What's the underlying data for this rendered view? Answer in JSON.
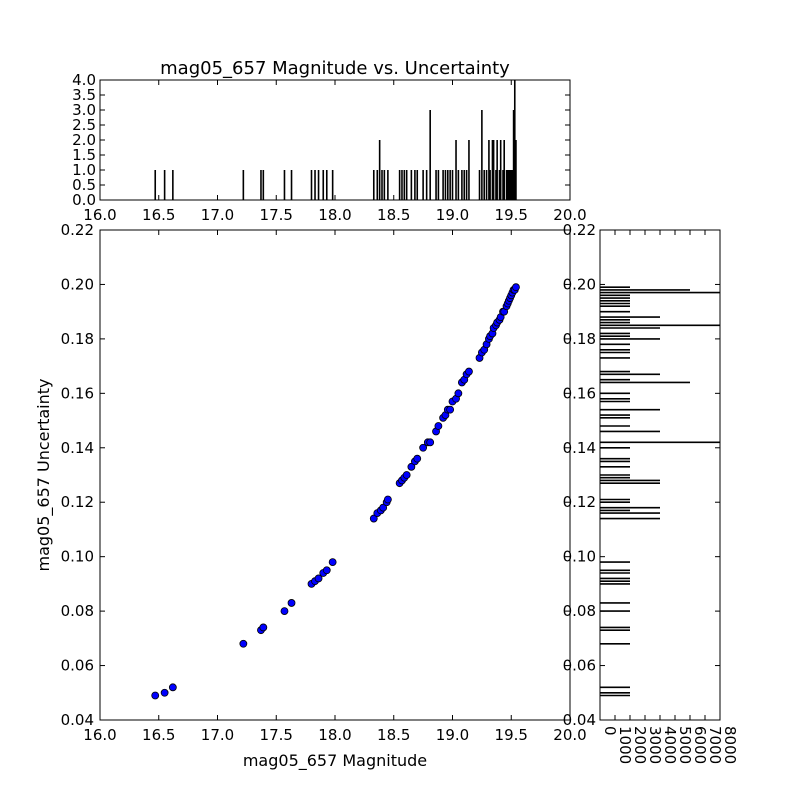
{
  "title": "mag05_657 Magnitude vs. Uncertainty",
  "colors": {
    "points": "#0000ff",
    "bars": "#000000",
    "axes": "#000000"
  },
  "chart_data": [
    {
      "id": "scatter",
      "type": "scatter",
      "xlabel": "mag05_657 Magnitude",
      "ylabel": "mag05_657 Uncertainty",
      "xlim": [
        16.0,
        20.0
      ],
      "ylim": [
        0.04,
        0.22
      ],
      "xticks": [
        "16.0",
        "16.5",
        "17.0",
        "17.5",
        "18.0",
        "18.5",
        "19.0",
        "19.5",
        "20.0"
      ],
      "yticks": [
        "0.04",
        "0.06",
        "0.08",
        "0.10",
        "0.12",
        "0.14",
        "0.16",
        "0.18",
        "0.20",
        "0.22"
      ],
      "x": [
        16.47,
        16.55,
        16.62,
        17.22,
        17.37,
        17.39,
        17.57,
        17.63,
        17.8,
        17.83,
        17.86,
        17.9,
        17.93,
        17.98,
        18.33,
        18.36,
        18.39,
        18.41,
        18.44,
        18.45,
        18.55,
        18.57,
        18.59,
        18.61,
        18.65,
        18.68,
        18.7,
        18.75,
        18.79,
        18.81,
        18.86,
        18.88,
        18.92,
        18.94,
        18.96,
        18.98,
        19.0,
        19.03,
        19.05,
        19.08,
        19.1,
        19.12,
        19.14,
        19.23,
        19.25,
        19.27,
        19.29,
        19.31,
        19.32,
        19.34,
        19.35,
        19.37,
        19.38,
        19.4,
        19.41,
        19.43,
        19.44,
        19.46,
        19.47,
        19.48,
        19.49,
        19.5,
        19.51,
        19.52,
        19.53,
        19.54
      ],
      "y": [
        0.049,
        0.05,
        0.052,
        0.068,
        0.073,
        0.074,
        0.08,
        0.083,
        0.09,
        0.091,
        0.092,
        0.094,
        0.095,
        0.098,
        0.114,
        0.116,
        0.117,
        0.118,
        0.12,
        0.121,
        0.127,
        0.128,
        0.129,
        0.13,
        0.133,
        0.135,
        0.136,
        0.14,
        0.142,
        0.142,
        0.146,
        0.148,
        0.151,
        0.152,
        0.154,
        0.154,
        0.157,
        0.158,
        0.16,
        0.164,
        0.165,
        0.167,
        0.168,
        0.173,
        0.175,
        0.176,
        0.178,
        0.18,
        0.181,
        0.182,
        0.184,
        0.185,
        0.186,
        0.187,
        0.188,
        0.19,
        0.19,
        0.192,
        0.193,
        0.194,
        0.195,
        0.196,
        0.197,
        0.198,
        0.198,
        0.199
      ]
    },
    {
      "id": "hist-x",
      "type": "bar",
      "title": "mag05_657 Magnitude vs. Uncertainty",
      "xlim": [
        16.0,
        20.0
      ],
      "ylim": [
        0.0,
        4.0
      ],
      "xticks": [
        "16.0",
        "16.5",
        "17.0",
        "17.5",
        "18.0",
        "18.5",
        "19.0",
        "19.5",
        "20.0"
      ],
      "yticks": [
        "0.0",
        "0.5",
        "1.0",
        "1.5",
        "2.0",
        "2.5",
        "3.0",
        "3.5",
        "4.0"
      ],
      "x": [
        16.47,
        16.55,
        16.62,
        17.22,
        17.37,
        17.39,
        17.57,
        17.63,
        17.8,
        17.83,
        17.86,
        17.9,
        17.93,
        17.98,
        18.33,
        18.36,
        18.38,
        18.4,
        18.42,
        18.45,
        18.55,
        18.57,
        18.59,
        18.61,
        18.65,
        18.68,
        18.7,
        18.75,
        18.78,
        18.81,
        18.86,
        18.88,
        18.92,
        18.94,
        18.96,
        18.98,
        19.0,
        19.03,
        19.05,
        19.08,
        19.1,
        19.12,
        19.14,
        19.23,
        19.25,
        19.27,
        19.29,
        19.31,
        19.32,
        19.34,
        19.35,
        19.37,
        19.38,
        19.4,
        19.41,
        19.43,
        19.44,
        19.46,
        19.47,
        19.48,
        19.49,
        19.5,
        19.51,
        19.52,
        19.53,
        19.54
      ],
      "values": [
        1,
        1,
        1,
        1,
        1,
        1,
        1,
        1,
        1,
        1,
        1,
        1,
        1,
        1,
        1,
        1,
        2,
        1,
        1,
        1,
        1,
        1,
        1,
        1,
        1,
        1,
        1,
        1,
        1,
        3,
        1,
        1,
        1,
        1,
        1,
        1,
        1,
        2,
        1,
        1,
        1,
        1,
        2,
        1,
        3,
        1,
        1,
        2,
        1,
        2,
        2,
        1,
        2,
        1,
        2,
        1,
        2,
        1,
        1,
        1,
        1,
        1,
        1,
        3,
        4,
        2
      ]
    },
    {
      "id": "hist-y",
      "type": "bar",
      "orientation": "horizontal",
      "xlim": [
        0,
        8000
      ],
      "ylim": [
        0.04,
        0.22
      ],
      "xticks": [
        "0",
        "1000",
        "2000",
        "3000",
        "4000",
        "5000",
        "6000",
        "7000",
        "8000"
      ],
      "yticks": [
        "0.04",
        "0.06",
        "0.08",
        "0.10",
        "0.12",
        "0.14",
        "0.16",
        "0.18",
        "0.20",
        "0.22"
      ],
      "y": [
        0.049,
        0.05,
        0.052,
        0.068,
        0.073,
        0.074,
        0.08,
        0.083,
        0.09,
        0.091,
        0.092,
        0.094,
        0.095,
        0.098,
        0.114,
        0.116,
        0.117,
        0.118,
        0.12,
        0.121,
        0.127,
        0.128,
        0.129,
        0.13,
        0.133,
        0.135,
        0.136,
        0.14,
        0.142,
        0.146,
        0.148,
        0.151,
        0.152,
        0.154,
        0.157,
        0.158,
        0.16,
        0.164,
        0.165,
        0.167,
        0.168,
        0.173,
        0.175,
        0.176,
        0.178,
        0.18,
        0.181,
        0.182,
        0.184,
        0.185,
        0.186,
        0.187,
        0.188,
        0.19,
        0.192,
        0.193,
        0.194,
        0.195,
        0.196,
        0.197,
        0.198,
        0.199
      ],
      "values": [
        2000,
        2000,
        2000,
        2000,
        2000,
        2000,
        2000,
        2000,
        2000,
        2000,
        2000,
        2000,
        2000,
        2000,
        4000,
        4000,
        2000,
        4000,
        2000,
        2000,
        4000,
        4000,
        2000,
        2000,
        2000,
        2000,
        2000,
        2000,
        8000,
        4000,
        2000,
        2000,
        2000,
        4000,
        2000,
        2000,
        2000,
        6000,
        2000,
        4000,
        2000,
        2000,
        2000,
        2000,
        2000,
        4000,
        2000,
        2000,
        4000,
        8000,
        2000,
        2000,
        4000,
        2000,
        2000,
        2000,
        2000,
        2000,
        2000,
        8000,
        6000,
        2000
      ]
    }
  ]
}
